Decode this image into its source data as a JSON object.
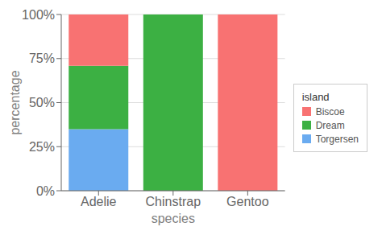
{
  "chart_data": {
    "type": "bar",
    "stacked": true,
    "categories": [
      "Adelie",
      "Chinstrap",
      "Gentoo"
    ],
    "series": [
      {
        "name": "Torgersen",
        "color": "#6AABF0",
        "values": [
          0.3488,
          0.0,
          0.0
        ]
      },
      {
        "name": "Dream",
        "color": "#3CB043",
        "values": [
          0.3605,
          1.0,
          0.0
        ]
      },
      {
        "name": "Biscoe",
        "color": "#F87272",
        "values": [
          0.2907,
          0.0,
          1.0
        ]
      }
    ],
    "x_label": "species",
    "y_label": "percentage",
    "legend_title": "island",
    "legend": "right",
    "ylim": [
      0,
      1
    ],
    "yticks": [
      {
        "value": 0.0,
        "label": "0%"
      },
      {
        "value": 0.25,
        "label": "25%"
      },
      {
        "value": 0.5,
        "label": "50%"
      },
      {
        "value": 0.75,
        "label": "75%"
      },
      {
        "value": 1.0,
        "label": "100%"
      }
    ],
    "grid": true
  }
}
